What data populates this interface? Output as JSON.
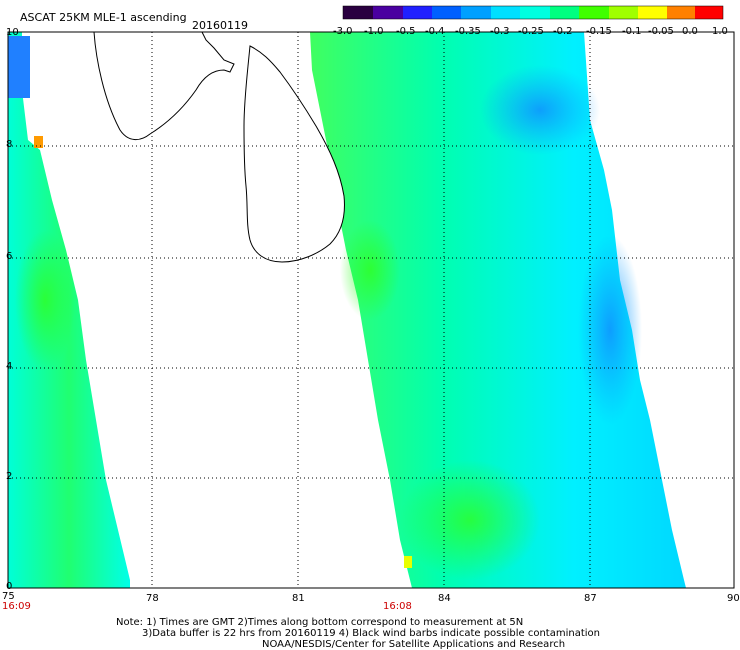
{
  "header": {
    "title": "ASCAT 25KM MLE-1 ascending",
    "date": "20160119"
  },
  "colorbar": {
    "ticks": [
      "-3.0",
      "-1.0",
      "-0.5",
      "-0.4",
      "-0.35",
      "-0.3",
      "-0.25",
      "-0.2",
      "-0.15",
      "-0.1",
      "-0.05",
      "0.0",
      "1.0"
    ],
    "colors": [
      "#2a0040",
      "#4a00a0",
      "#2020ff",
      "#0060ff",
      "#00a0ff",
      "#00e0ff",
      "#00ffe0",
      "#00ff80",
      "#40ff00",
      "#a0ff00",
      "#ffff00",
      "#ff8000",
      "#ff0000"
    ]
  },
  "map": {
    "lon_range": [
      75,
      90
    ],
    "lat_range": [
      0,
      10
    ],
    "x_ticks": [
      "75",
      "78",
      "81",
      "84",
      "87",
      "90"
    ],
    "y_ticks": [
      "0",
      "2",
      "4",
      "6",
      "8",
      "10"
    ],
    "swath_times": [
      "16:09",
      "16:08"
    ]
  },
  "footer": {
    "note_line1": "Note: 1) Times are GMT 2)Times along bottom correspond to measurement at 5N",
    "note_line2": "3)Data buffer is 22 hrs from 20160119 4) Black wind barbs indicate possible contamination",
    "credit": "NOAA/NESDIS/Center for Satellite Applications and Research"
  }
}
